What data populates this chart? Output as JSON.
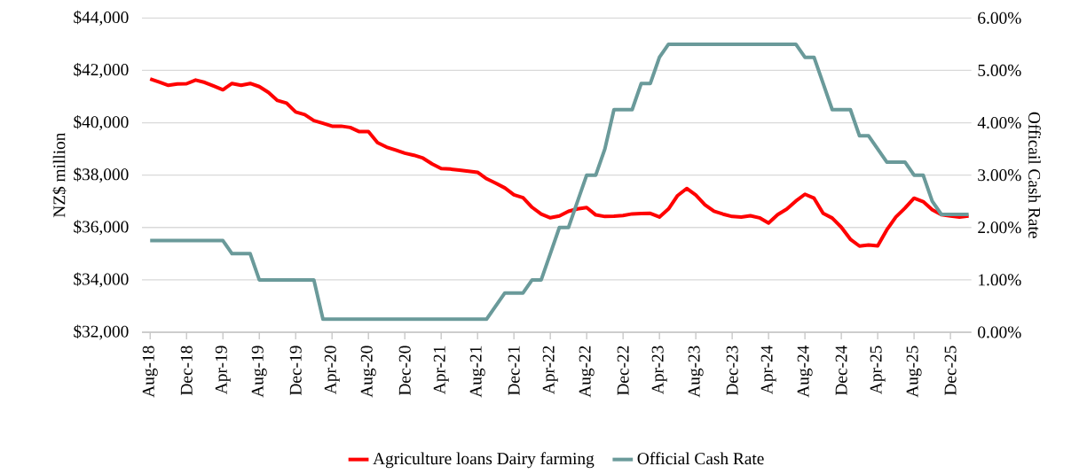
{
  "chart_data": {
    "type": "line",
    "ylabel": "NZ$ million",
    "y2label": "Officail Cash Rate",
    "categories": [
      "Aug-18",
      null,
      null,
      null,
      "Dec-18",
      null,
      null,
      null,
      "Apr-19",
      null,
      null,
      null,
      "Aug-19",
      null,
      null,
      null,
      "Dec-19",
      null,
      null,
      null,
      "Apr-20",
      null,
      null,
      null,
      "Aug-20",
      null,
      null,
      null,
      "Dec-20",
      null,
      null,
      null,
      "Apr-21",
      null,
      null,
      null,
      "Aug-21",
      null,
      null,
      null,
      "Dec-21",
      null,
      null,
      null,
      "Apr-22",
      null,
      null,
      null,
      "Aug-22",
      null,
      null,
      null,
      "Dec-22",
      null,
      null,
      null,
      "Apr-23",
      null,
      null,
      null,
      "Aug-23",
      null,
      null,
      null,
      "Dec-23",
      null,
      null,
      null,
      "Apr-24",
      null,
      null,
      null,
      "Aug-24",
      null,
      null,
      null,
      "Dec-24",
      null,
      null,
      null,
      "Apr-25",
      null,
      null,
      null,
      "Aug-25",
      null,
      null,
      null,
      "Dec-25",
      null,
      null
    ],
    "series": [
      {
        "name": "Agriculture loans Dairy farming",
        "color": "#ff0000",
        "values": [
          41670,
          41550,
          41430,
          41480,
          41490,
          41630,
          41540,
          41400,
          41260,
          41500,
          41430,
          41500,
          41380,
          41160,
          40850,
          40750,
          40410,
          40310,
          40080,
          39980,
          39870,
          39870,
          39820,
          39660,
          39660,
          39240,
          39070,
          38960,
          38840,
          38760,
          38650,
          38430,
          38250,
          38230,
          38190,
          38150,
          38110,
          37860,
          37690,
          37510,
          37250,
          37140,
          36770,
          36510,
          36370,
          36440,
          36620,
          36710,
          36760,
          36480,
          36420,
          36430,
          36460,
          36520,
          36530,
          36540,
          36400,
          36710,
          37220,
          37490,
          37240,
          36870,
          36620,
          36510,
          36420,
          36400,
          36450,
          36370,
          36170,
          36490,
          36700,
          37010,
          37270,
          37120,
          36540,
          36360,
          36010,
          35550,
          35290,
          35330,
          35300,
          35910,
          36400,
          36740,
          37120,
          36990,
          36680,
          36490,
          36440,
          36400,
          36440
        ]
      },
      {
        "name": "Official Cash Rate",
        "color": "#6a9a9a",
        "axis": "y2",
        "values": [
          1.75,
          1.75,
          1.75,
          1.75,
          1.75,
          1.75,
          1.75,
          1.75,
          1.75,
          1.5,
          1.5,
          1.5,
          1.0,
          1.0,
          1.0,
          1.0,
          1.0,
          1.0,
          1.0,
          0.25,
          0.25,
          0.25,
          0.25,
          0.25,
          0.25,
          0.25,
          0.25,
          0.25,
          0.25,
          0.25,
          0.25,
          0.25,
          0.25,
          0.25,
          0.25,
          0.25,
          0.25,
          0.25,
          0.5,
          0.75,
          0.75,
          0.75,
          1.0,
          1.0,
          1.5,
          2.0,
          2.0,
          2.5,
          3.0,
          3.0,
          3.5,
          4.25,
          4.25,
          4.25,
          4.75,
          4.75,
          5.25,
          5.5,
          5.5,
          5.5,
          5.5,
          5.5,
          5.5,
          5.5,
          5.5,
          5.5,
          5.5,
          5.5,
          5.5,
          5.5,
          5.5,
          5.5,
          5.25,
          5.25,
          4.75,
          4.25,
          4.25,
          4.25,
          3.75,
          3.75,
          3.5,
          3.25,
          3.25,
          3.25,
          3.0,
          3.0,
          2.5,
          2.25,
          2.25,
          2.25,
          2.25
        ]
      }
    ],
    "ylim": [
      32000,
      44000
    ],
    "yticks": [
      {
        "value": 32000,
        "label": "$32,000"
      },
      {
        "value": 34000,
        "label": "$34,000"
      },
      {
        "value": 36000,
        "label": "$36,000"
      },
      {
        "value": 38000,
        "label": "$38,000"
      },
      {
        "value": 40000,
        "label": "$40,000"
      },
      {
        "value": 42000,
        "label": "$42,000"
      },
      {
        "value": 44000,
        "label": "$44,000"
      }
    ],
    "y2lim": [
      0,
      6
    ],
    "y2ticks": [
      {
        "value": 0,
        "label": "0.00%"
      },
      {
        "value": 1,
        "label": "1.00%"
      },
      {
        "value": 2,
        "label": "2.00%"
      },
      {
        "value": 3,
        "label": "3.00%"
      },
      {
        "value": 4,
        "label": "4.00%"
      },
      {
        "value": 5,
        "label": "5.00%"
      },
      {
        "value": 6,
        "label": "6.00%"
      }
    ],
    "grid": "y",
    "legend": "bottom",
    "marker": "none",
    "line_style": "solid"
  }
}
